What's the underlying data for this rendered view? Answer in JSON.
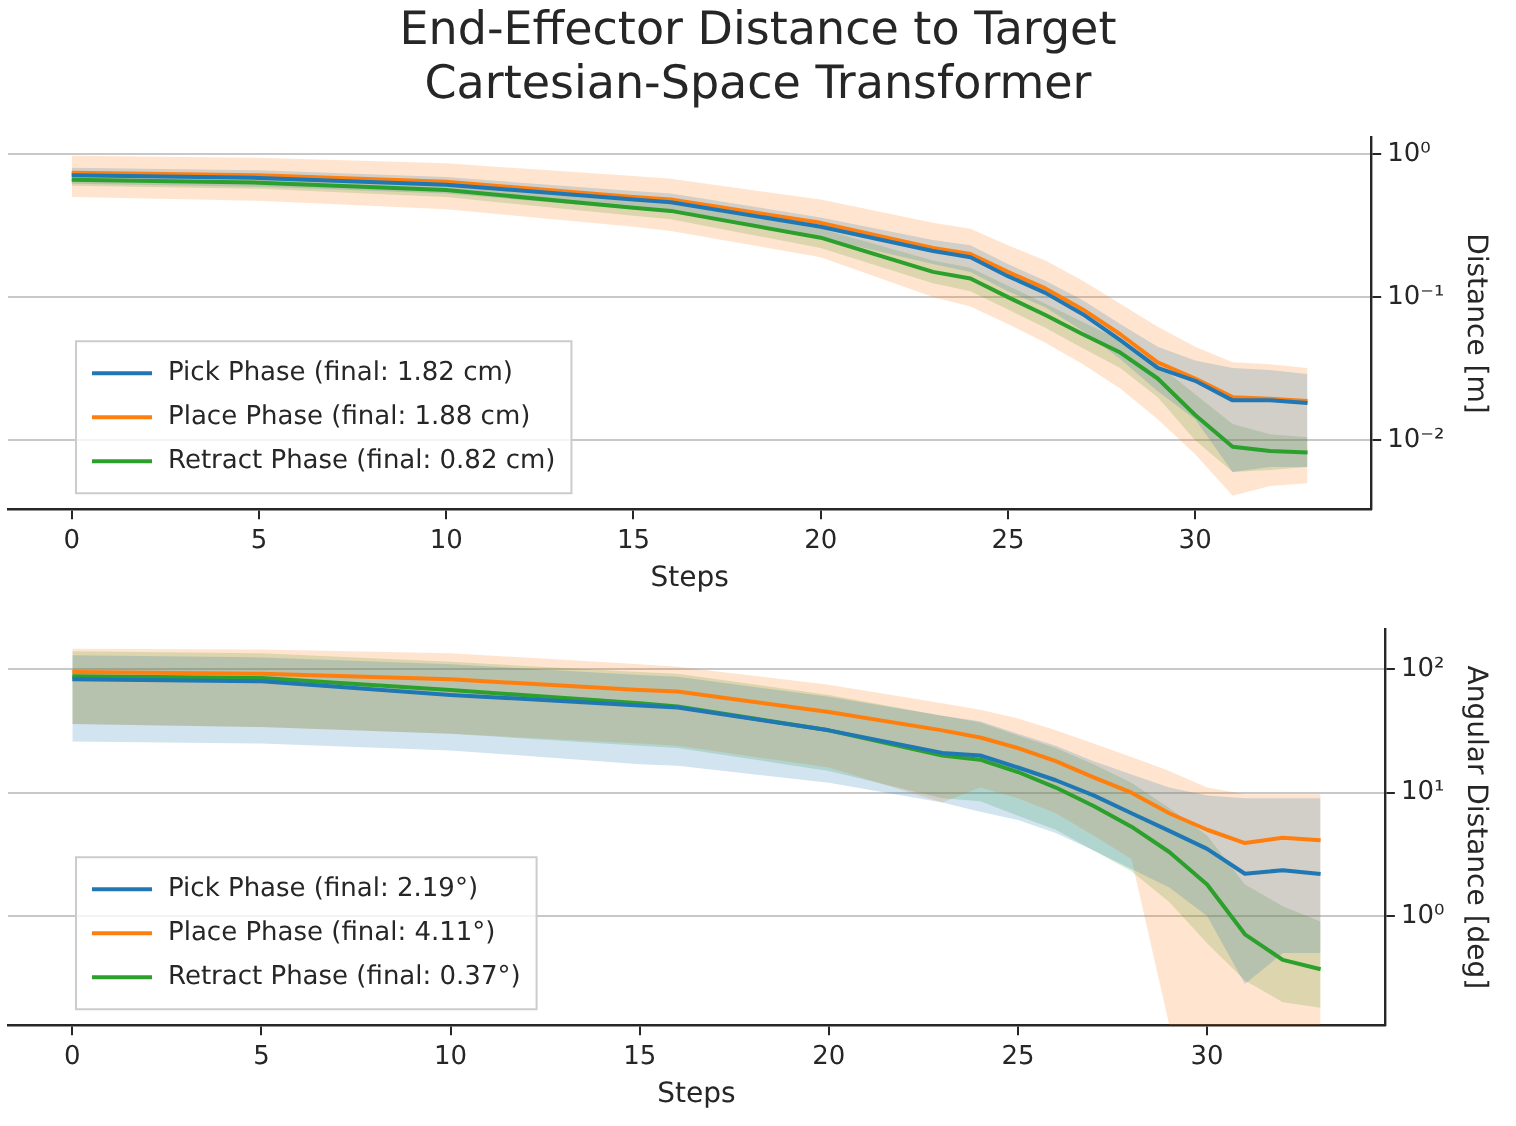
{
  "chart_data": [
    {
      "type": "line",
      "title": "End-Effector Distance to Target",
      "subtitle": "Cartesian-Space Transformer",
      "xlabel": "Steps",
      "ylabel": "Distance [m]",
      "log": "y",
      "grid": "y",
      "legend": "bottom left",
      "marker": "none",
      "line_style": "solid",
      "x": [
        0,
        5,
        10,
        15,
        16,
        20,
        23,
        24,
        25,
        26,
        27,
        28,
        29,
        30,
        31,
        32,
        33
      ],
      "xlim": [
        -1.7,
        34.7
      ],
      "xticks": [
        0,
        5,
        10,
        15,
        20,
        25,
        30
      ],
      "ylim": [
        0.0033,
        1.3
      ],
      "yticks": [
        {
          "value": 1,
          "label": "10⁰"
        },
        {
          "value": 0.1,
          "label": "10⁻¹"
        },
        {
          "value": 0.01,
          "label": "10⁻²"
        }
      ],
      "series": [
        {
          "name": "Pick Phase (final: 1.82 cm)",
          "color": "#1f77b4",
          "values": [
            0.71,
            0.68,
            0.61,
            0.48,
            0.46,
            0.31,
            0.21,
            0.19,
            0.14,
            0.107,
            0.076,
            0.05,
            0.032,
            0.026,
            0.019,
            0.019,
            0.0182
          ],
          "lower": [
            0.62,
            0.59,
            0.53,
            0.41,
            0.39,
            0.26,
            0.17,
            0.15,
            0.11,
            0.085,
            0.058,
            0.037,
            0.022,
            0.014,
            0.006,
            0.0065,
            0.0065
          ],
          "upper": [
            0.8,
            0.77,
            0.69,
            0.55,
            0.53,
            0.36,
            0.25,
            0.23,
            0.17,
            0.13,
            0.095,
            0.065,
            0.045,
            0.036,
            0.032,
            0.031,
            0.029
          ]
        },
        {
          "name": "Place Phase (final: 1.88 cm)",
          "color": "#ff7f0e",
          "values": [
            0.74,
            0.71,
            0.64,
            0.5,
            0.48,
            0.33,
            0.22,
            0.2,
            0.15,
            0.115,
            0.082,
            0.055,
            0.035,
            0.027,
            0.02,
            0.0195,
            0.0188
          ],
          "lower": [
            0.5,
            0.47,
            0.41,
            0.31,
            0.29,
            0.19,
            0.1,
            0.086,
            0.065,
            0.048,
            0.034,
            0.023,
            0.014,
            0.008,
            0.0041,
            0.0048,
            0.005
          ],
          "upper": [
            0.97,
            0.94,
            0.86,
            0.7,
            0.67,
            0.48,
            0.33,
            0.3,
            0.23,
            0.18,
            0.13,
            0.09,
            0.062,
            0.045,
            0.035,
            0.034,
            0.032
          ]
        },
        {
          "name": "Retract Phase (final: 0.82 cm)",
          "color": "#2ca02c",
          "values": [
            0.66,
            0.63,
            0.56,
            0.42,
            0.4,
            0.26,
            0.15,
            0.135,
            0.1,
            0.075,
            0.055,
            0.041,
            0.027,
            0.015,
            0.009,
            0.0084,
            0.0082
          ],
          "lower": [
            0.6,
            0.57,
            0.5,
            0.37,
            0.35,
            0.22,
            0.125,
            0.11,
            0.082,
            0.061,
            0.044,
            0.032,
            0.02,
            0.01,
            0.006,
            0.0062,
            0.0065
          ],
          "upper": [
            0.72,
            0.69,
            0.62,
            0.47,
            0.45,
            0.3,
            0.18,
            0.16,
            0.12,
            0.09,
            0.067,
            0.05,
            0.034,
            0.021,
            0.013,
            0.011,
            0.0105
          ]
        }
      ]
    },
    {
      "type": "line",
      "xlabel": "Steps",
      "ylabel": "Angular Distance [deg]",
      "log": "y",
      "grid": "y",
      "legend": "bottom left",
      "marker": "none",
      "line_style": "solid",
      "x": [
        0,
        5,
        10,
        15,
        16,
        20,
        23,
        24,
        25,
        26,
        27,
        28,
        29,
        30,
        31,
        32,
        33
      ],
      "xlim": [
        -1.7,
        34.7
      ],
      "xticks": [
        0,
        5,
        10,
        15,
        20,
        25,
        30
      ],
      "ylim": [
        0.13,
        210
      ],
      "yticks": [
        {
          "value": 100,
          "label": "10²"
        },
        {
          "value": 10,
          "label": "10¹"
        },
        {
          "value": 1,
          "label": "10⁰"
        }
      ],
      "series": [
        {
          "name": "Pick Phase (final: 2.19°)",
          "color": "#1f77b4",
          "values": [
            83,
            80,
            62,
            51,
            49,
            32,
            21,
            20,
            16,
            12.6,
            9.5,
            6.8,
            4.9,
            3.5,
            2.2,
            2.35,
            2.19
          ],
          "lower": [
            26,
            25,
            22,
            17,
            16.5,
            12,
            8.3,
            7,
            6,
            4.7,
            3.4,
            2.4,
            1.7,
            1.0,
            0.28,
            0.5,
            0.5
          ],
          "upper": [
            130,
            125,
            110,
            90,
            87,
            60,
            42,
            38,
            30,
            24,
            18,
            14,
            11,
            9.5,
            9,
            9,
            9
          ]
        },
        {
          "name": "Place Phase (final: 4.11°)",
          "color": "#ff7f0e",
          "values": [
            95,
            92,
            83,
            68,
            66,
            45,
            32,
            28,
            23,
            18,
            13.3,
            10,
            6.8,
            5,
            3.9,
            4.3,
            4.11
          ],
          "lower": [
            36,
            34,
            30,
            25,
            24,
            16,
            8.3,
            11,
            9,
            6.8,
            4.5,
            2.9,
            0.13,
            0.13,
            0.13,
            0.13,
            0.13
          ],
          "upper": [
            147,
            145,
            135,
            110,
            105,
            75,
            53,
            47,
            40,
            32,
            25,
            19.5,
            15,
            11,
            9.7,
            9.7,
            9.7
          ]
        },
        {
          "name": "Retract Phase (final: 0.37°)",
          "color": "#2ca02c",
          "values": [
            88,
            85,
            68,
            53,
            50,
            32,
            20,
            18.5,
            14.7,
            11,
            7.8,
            5.3,
            3.3,
            1.8,
            0.71,
            0.44,
            0.37
          ],
          "lower": [
            36,
            34,
            30,
            24,
            23,
            15,
            9,
            8.5,
            6.5,
            5,
            3.4,
            2.3,
            1.3,
            0.6,
            0.3,
            0.2,
            0.18
          ],
          "upper": [
            140,
            135,
            115,
            95,
            92,
            62,
            42,
            37,
            29,
            23,
            17,
            12,
            7.5,
            4.5,
            1.8,
            1.2,
            0.9
          ]
        }
      ]
    }
  ]
}
